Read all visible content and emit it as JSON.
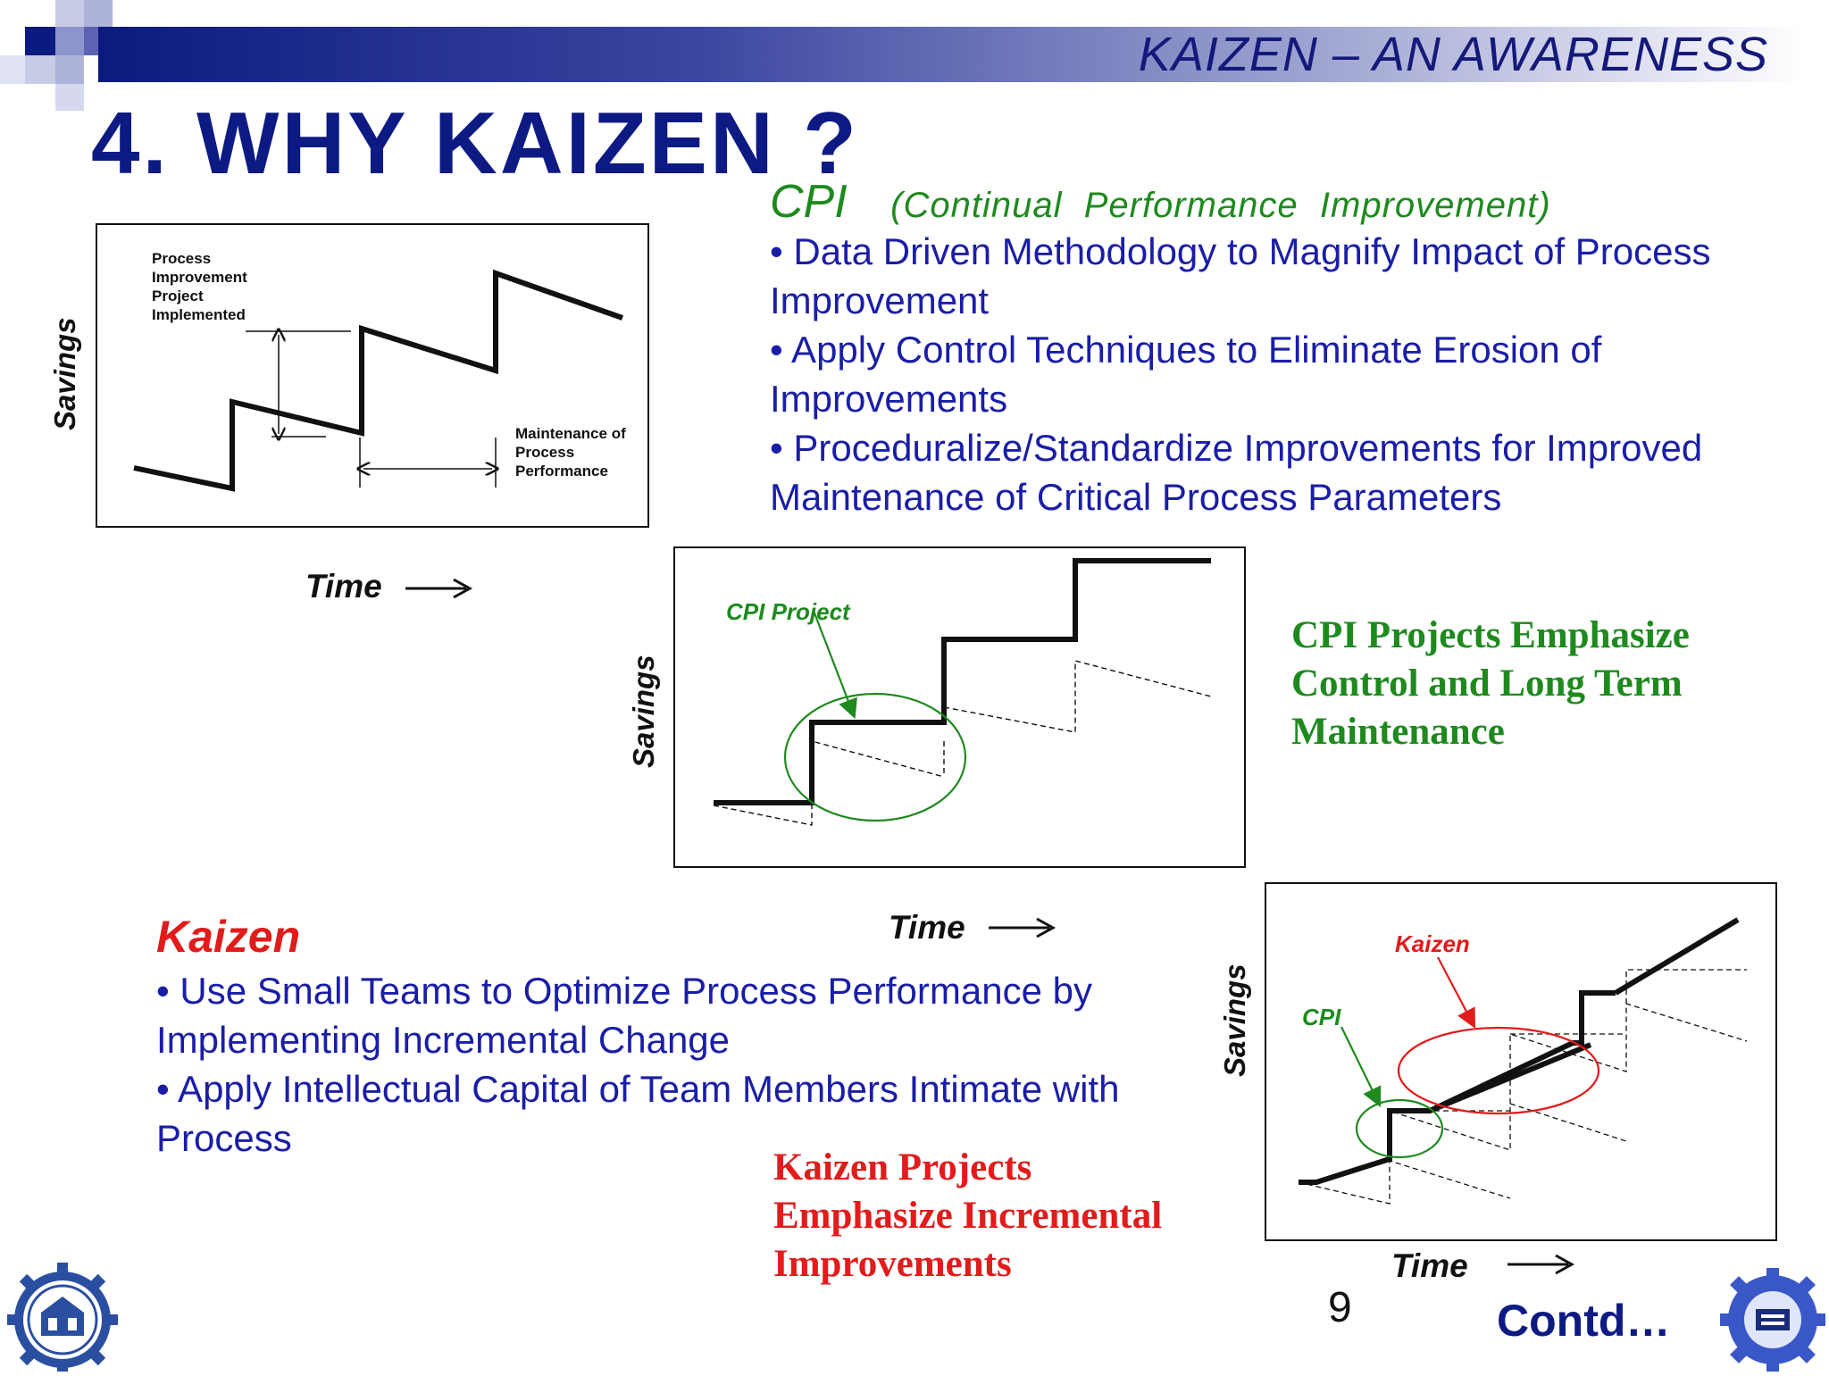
{
  "header": {
    "title": "KAIZEN – AN AWARENESS"
  },
  "slide": {
    "title": "4. WHY KAIZEN ?"
  },
  "cpi": {
    "heading": "CPI",
    "heading_expansion": "(Continual  Performance  Improvement)",
    "bullets": [
      "• Data Driven Methodology to Magnify Impact of Process Improvement",
      "• Apply Control Techniques to Eliminate Erosion of Improvements",
      "• Proceduralize/Standardize Improvements for Improved Maintenance of Critical Process Parameters"
    ],
    "emphasis": "CPI Projects Emphasize Control and Long Term Maintenance"
  },
  "kaizen": {
    "heading": "Kaizen",
    "bullets": [
      "• Use Small Teams  to Optimize Process Performance by Implementing Incremental Change",
      "• Apply Intellectual Capital of Team Members Intimate with Process"
    ],
    "emphasis": "Kaizen Projects Emphasize Incremental Improvements"
  },
  "diagram1": {
    "y_label": "Savings",
    "x_label": "Time",
    "label_top": "Process Improvement Project Implemented",
    "label_bottom": "Maintenance of Process Performance"
  },
  "diagram2": {
    "y_label": "Savings",
    "x_label": "Time",
    "callout": "CPI Project"
  },
  "diagram3": {
    "y_label": "Savings",
    "x_label": "Time",
    "callout_cpi": "CPI",
    "callout_kaizen": "Kaizen"
  },
  "footer": {
    "page_number": "9",
    "contd": "Contd…"
  },
  "colors": {
    "navy": "#0d1a84",
    "text_blue": "#1a1ea6",
    "green": "#1e8a1e",
    "red": "#e21b1b"
  },
  "icons": [
    "university-seal-icon",
    "au-tvs-logo-icon"
  ]
}
